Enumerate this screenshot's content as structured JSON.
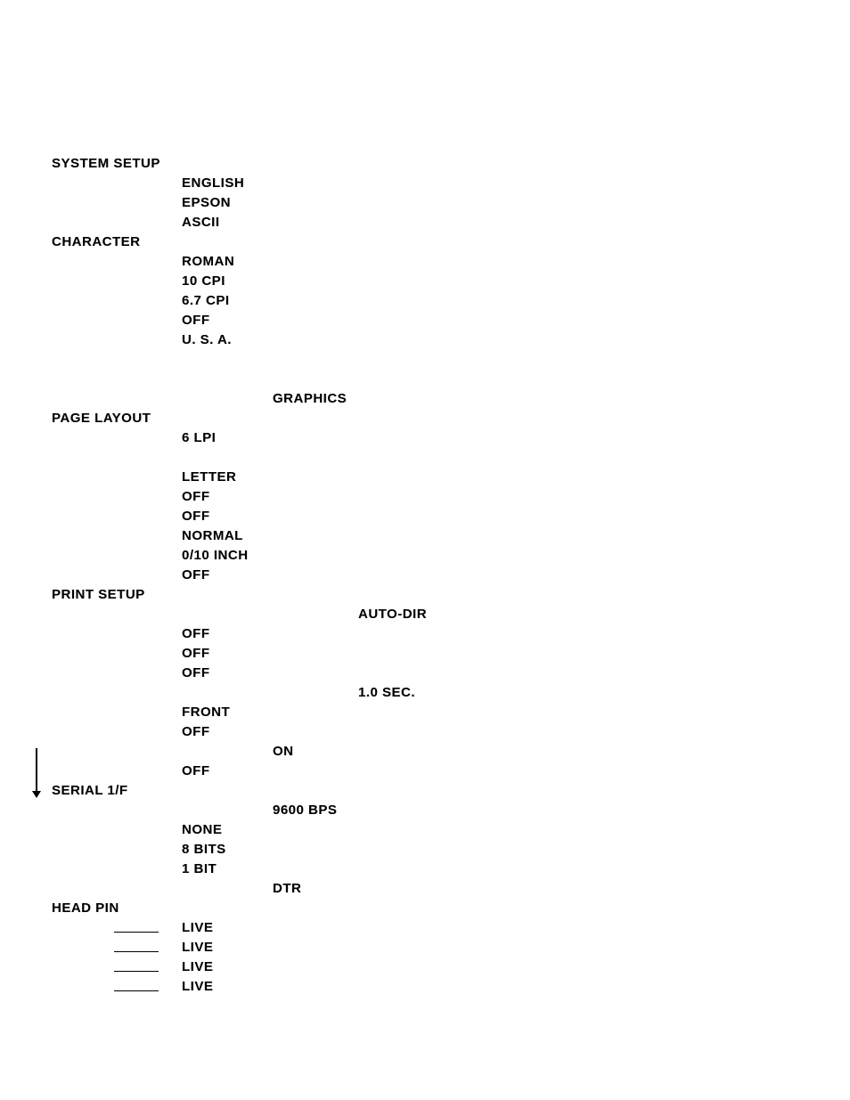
{
  "sections": {
    "system_setup": {
      "header": "SYSTEM SETUP",
      "english": "ENGLISH",
      "epson": "EPSON",
      "ascii": "ASCII"
    },
    "character": {
      "header": "CHARACTER",
      "roman": "ROMAN",
      "cpi10": "10 CPI",
      "cpi67": "6.7 CPI",
      "off": "OFF",
      "usa": "U. S. A."
    },
    "graphics": "GRAPHICS",
    "page_layout": {
      "header": "PAGE LAYOUT",
      "lpi6": "6 LPI",
      "letter": "LETTER",
      "off1": "OFF",
      "off2": "OFF",
      "normal": "NORMAL",
      "margin": "0/10 INCH",
      "off3": "OFF"
    },
    "print_setup": {
      "header": "PRINT SETUP",
      "autodir": "AUTO-DIR",
      "off1": "OFF",
      "off2": "OFF",
      "off3": "OFF",
      "sec": "1.0 SEC.",
      "front": "FRONT",
      "off4": "OFF",
      "on": "ON",
      "off5": "OFF"
    },
    "serial": {
      "header": "SERIAL 1/F",
      "bps": "9600 BPS",
      "none": "NONE",
      "bits8": "8 BITS",
      "bit1": "1 BIT",
      "dtr": "DTR"
    },
    "head_pin": {
      "header": "HEAD PIN",
      "live": "LIVE"
    }
  },
  "style": {
    "text_color": "#000000",
    "background_color": "#ffffff",
    "font_size": 15,
    "font_weight": "bold"
  }
}
